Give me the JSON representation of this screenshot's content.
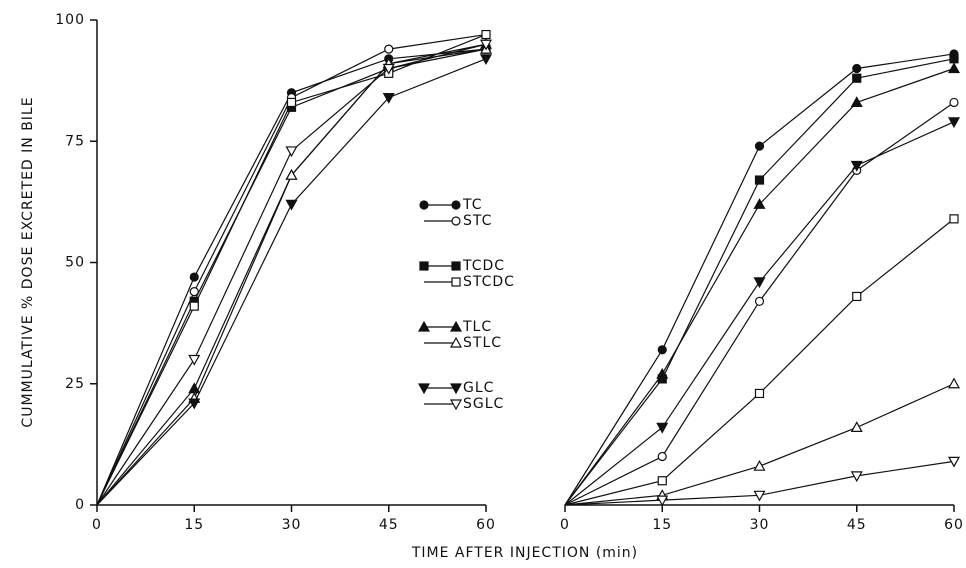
{
  "chart_data": [
    {
      "type": "line",
      "ylabel": "CUMMULATIVE % DOSE EXCRETED IN BILE",
      "xlabel": "TIME AFTER INJECTION (min)",
      "x": [
        0,
        15,
        30,
        45,
        60
      ],
      "xlim": [
        0,
        60
      ],
      "xticks": [
        0,
        15,
        30,
        45,
        60
      ],
      "ylim": [
        0,
        100
      ],
      "yticks": [
        0,
        25,
        50,
        75,
        100
      ],
      "color": "#111111",
      "series": [
        {
          "name": "TC",
          "marker": "circle",
          "filled": true,
          "values": [
            0,
            47,
            85,
            92,
            94
          ]
        },
        {
          "name": "STC",
          "marker": "circle",
          "filled": false,
          "values": [
            0,
            44,
            84,
            94,
            97
          ]
        },
        {
          "name": "TCDC",
          "marker": "square",
          "filled": true,
          "values": [
            0,
            42,
            82,
            90,
            94
          ]
        },
        {
          "name": "STCDC",
          "marker": "square",
          "filled": false,
          "values": [
            0,
            41,
            83,
            89,
            97
          ]
        },
        {
          "name": "TLC",
          "marker": "triangle-up",
          "filled": true,
          "values": [
            0,
            24,
            68,
            91,
            95
          ]
        },
        {
          "name": "STLC",
          "marker": "triangle-up",
          "filled": false,
          "values": [
            0,
            22,
            68,
            91,
            94
          ]
        },
        {
          "name": "GLC",
          "marker": "triangle-down",
          "filled": true,
          "values": [
            0,
            21,
            62,
            84,
            92
          ]
        },
        {
          "name": "SGLC",
          "marker": "triangle-down",
          "filled": false,
          "values": [
            0,
            30,
            73,
            90,
            95
          ]
        }
      ]
    },
    {
      "type": "line",
      "x": [
        0,
        15,
        30,
        45,
        60
      ],
      "xlim": [
        0,
        60
      ],
      "xticks": [
        0,
        15,
        30,
        45,
        60
      ],
      "ylim": [
        0,
        100
      ],
      "color": "#111111",
      "series": [
        {
          "marker": "circle",
          "filled": true,
          "values": [
            0,
            32,
            74,
            90,
            93
          ]
        },
        {
          "marker": "circle",
          "filled": false,
          "values": [
            0,
            10,
            42,
            69,
            83
          ]
        },
        {
          "marker": "square",
          "filled": true,
          "values": [
            0,
            26,
            67,
            88,
            92
          ]
        },
        {
          "marker": "square",
          "filled": false,
          "values": [
            0,
            5,
            23,
            43,
            59
          ]
        },
        {
          "marker": "triangle-up",
          "filled": true,
          "values": [
            0,
            27,
            62,
            83,
            90
          ]
        },
        {
          "marker": "triangle-up",
          "filled": false,
          "values": [
            0,
            2,
            8,
            16,
            25
          ]
        },
        {
          "marker": "triangle-down",
          "filled": true,
          "values": [
            0,
            16,
            46,
            70,
            79
          ]
        },
        {
          "marker": "triangle-down",
          "filled": false,
          "values": [
            0,
            1,
            2,
            6,
            9
          ]
        }
      ]
    }
  ]
}
